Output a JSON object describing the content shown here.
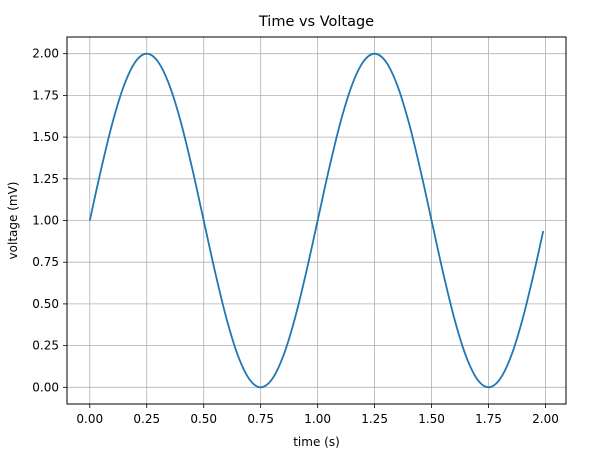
{
  "chart_data": {
    "type": "line",
    "title": "Time vs Voltage",
    "xlabel": "time (s)",
    "ylabel": "voltage (mV)",
    "xlim": [
      -0.1,
      2.09
    ],
    "ylim": [
      -0.1,
      2.1
    ],
    "xticks": [
      0.0,
      0.25,
      0.5,
      0.75,
      1.0,
      1.25,
      1.5,
      1.75,
      2.0
    ],
    "xtick_labels": [
      "0.00",
      "0.25",
      "0.50",
      "0.75",
      "1.00",
      "1.25",
      "1.50",
      "1.75",
      "2.00"
    ],
    "yticks": [
      0.0,
      0.25,
      0.5,
      0.75,
      1.0,
      1.25,
      1.5,
      1.75,
      2.0
    ],
    "ytick_labels": [
      "0.00",
      "0.25",
      "0.50",
      "0.75",
      "1.00",
      "1.25",
      "1.50",
      "1.75",
      "2.00"
    ],
    "grid": true,
    "line_color": "#1f77b4",
    "series": [
      {
        "x": [
          0.0,
          0.05,
          0.1,
          0.15,
          0.2,
          0.25,
          0.3,
          0.35,
          0.4,
          0.45,
          0.5,
          0.55,
          0.6,
          0.65,
          0.7,
          0.75,
          0.8,
          0.85,
          0.9,
          0.95,
          1.0,
          1.05,
          1.1,
          1.15,
          1.2,
          1.25,
          1.3,
          1.35,
          1.4,
          1.45,
          1.5,
          1.55,
          1.6,
          1.65,
          1.7,
          1.75,
          1.8,
          1.85,
          1.9,
          1.95,
          1.99
        ],
        "values": [
          1.0,
          1.309,
          1.588,
          1.809,
          1.951,
          2.0,
          1.951,
          1.809,
          1.588,
          1.309,
          1.0,
          0.691,
          0.412,
          0.191,
          0.049,
          0.0,
          0.049,
          0.191,
          0.412,
          0.691,
          1.0,
          1.309,
          1.588,
          1.809,
          1.951,
          2.0,
          1.951,
          1.809,
          1.588,
          1.309,
          1.0,
          0.691,
          0.412,
          0.191,
          0.049,
          0.0,
          0.049,
          0.191,
          0.412,
          0.691,
          0.937
        ]
      }
    ]
  }
}
